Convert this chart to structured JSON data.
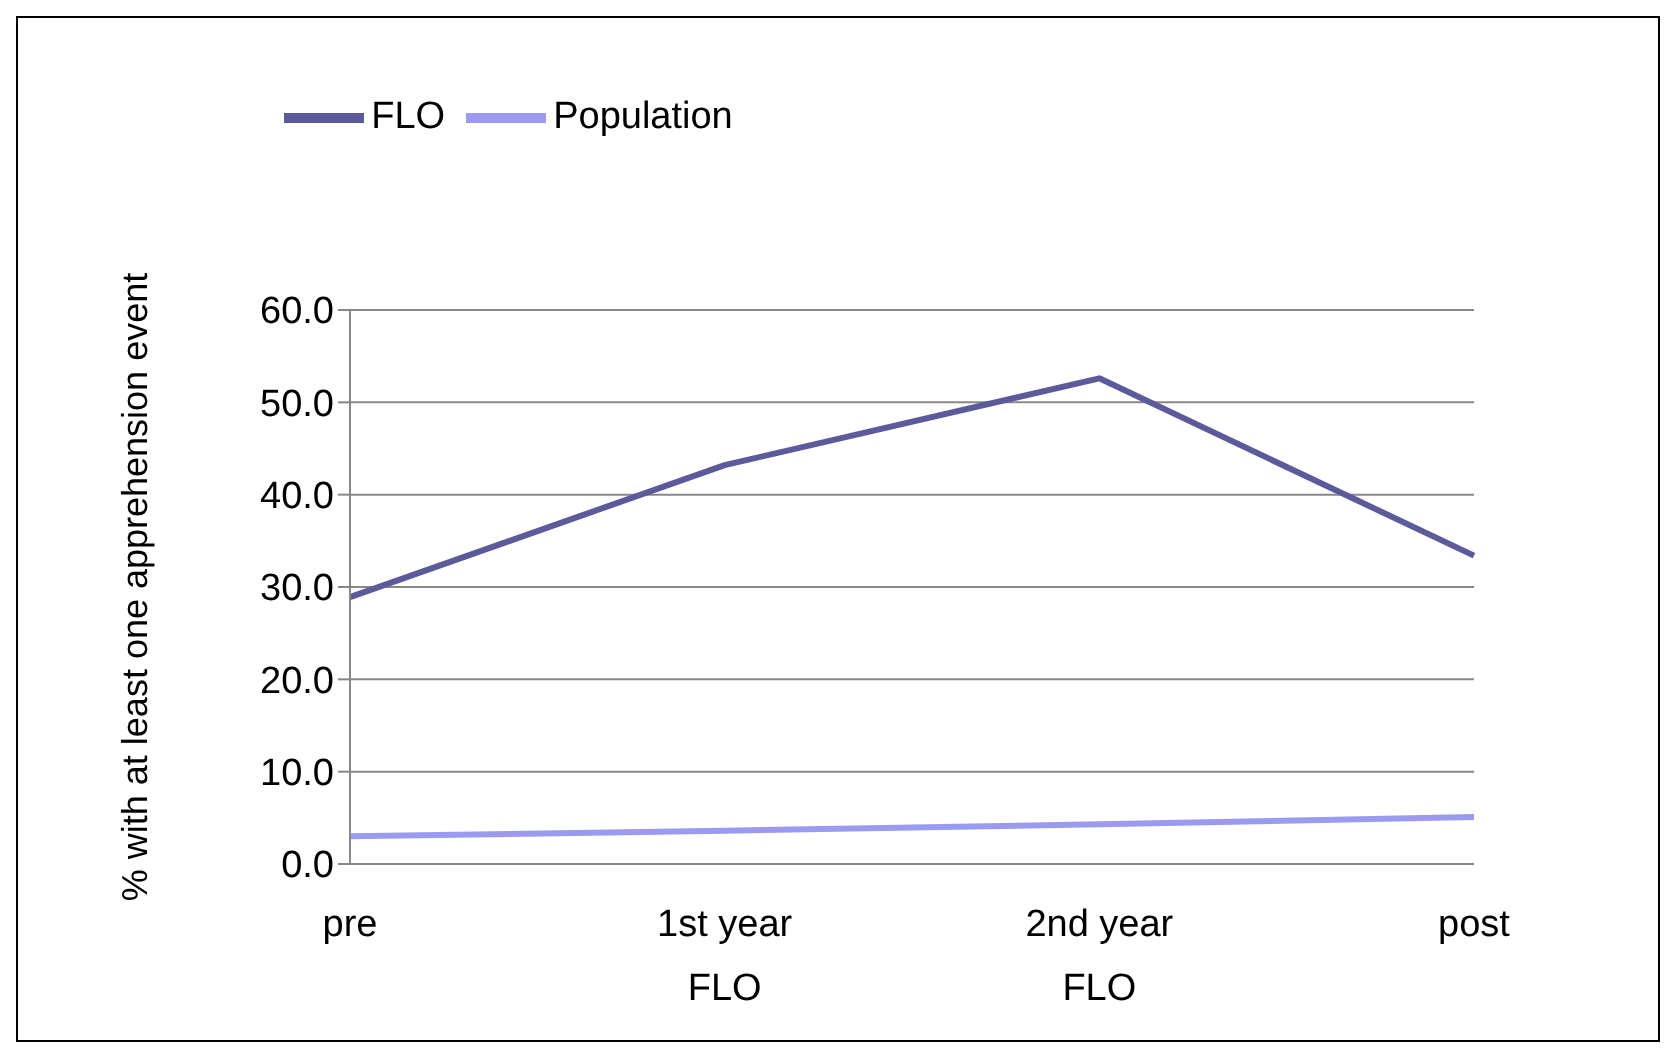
{
  "chart_data": {
    "type": "line",
    "ylabel": "% with at least one apprehension event",
    "categories": [
      "pre",
      "1st year FLO",
      "2nd year FLO",
      "post"
    ],
    "series": [
      {
        "name": "FLO",
        "color": "#5b5b9b",
        "values": [
          28.9,
          43.2,
          52.6,
          33.4
        ]
      },
      {
        "name": "Population",
        "color": "#9a9af0",
        "values": [
          3.0,
          3.6,
          4.3,
          5.1
        ]
      }
    ],
    "ylim": [
      0,
      60
    ],
    "yticks": [
      {
        "value": 0,
        "label": "0.0"
      },
      {
        "value": 10,
        "label": "10.0"
      },
      {
        "value": 20,
        "label": "20.0"
      },
      {
        "value": 30,
        "label": "30.0"
      },
      {
        "value": 40,
        "label": "40.0"
      },
      {
        "value": 50,
        "label": "50.0"
      },
      {
        "value": 60,
        "label": "60.0"
      }
    ],
    "grid": "y",
    "legend": "top",
    "marker": "none",
    "line_style": "solid"
  }
}
